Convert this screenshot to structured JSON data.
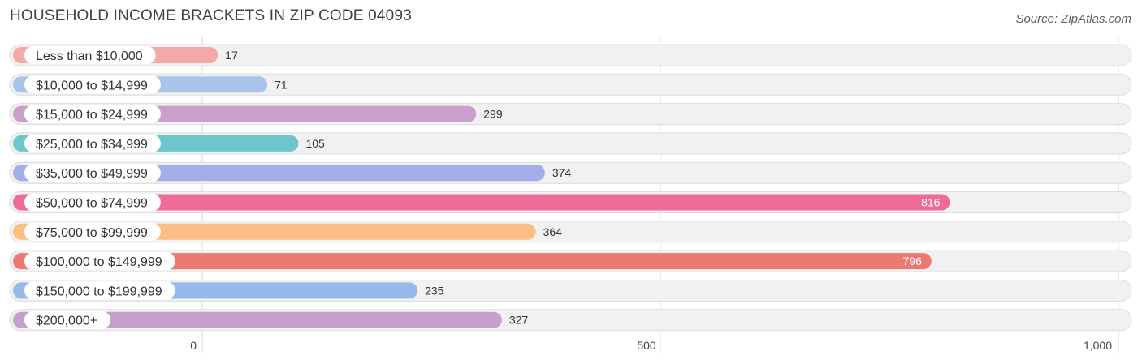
{
  "chart_data": {
    "type": "bar",
    "orientation": "horizontal",
    "title": "HOUSEHOLD INCOME BRACKETS IN ZIP CODE 04093",
    "source": "Source: ZipAtlas.com",
    "categories": [
      "Less than $10,000",
      "$10,000 to $14,999",
      "$15,000 to $24,999",
      "$25,000 to $34,999",
      "$35,000 to $49,999",
      "$50,000 to $74,999",
      "$75,000 to $99,999",
      "$100,000 to $149,999",
      "$150,000 to $199,999",
      "$200,000+"
    ],
    "values": [
      17,
      71,
      299,
      105,
      374,
      816,
      364,
      796,
      235,
      327
    ],
    "value_labels": [
      "17",
      "71",
      "299",
      "105",
      "374",
      "816",
      "364",
      "796",
      "235",
      "327"
    ],
    "colors": [
      "#f4a9a8",
      "#a8c4ea",
      "#c9a0cc",
      "#6ec6cc",
      "#a3aee8",
      "#f06b98",
      "#fbbf85",
      "#ea7a72",
      "#95b9e8",
      "#c6a0cc"
    ],
    "xlim": [
      0,
      1000
    ],
    "xticks": [
      0,
      500,
      1000
    ],
    "xtick_labels": [
      "0",
      "500",
      "1,000"
    ],
    "xlabel": "",
    "ylabel": "",
    "grid": true,
    "legend": "none"
  }
}
